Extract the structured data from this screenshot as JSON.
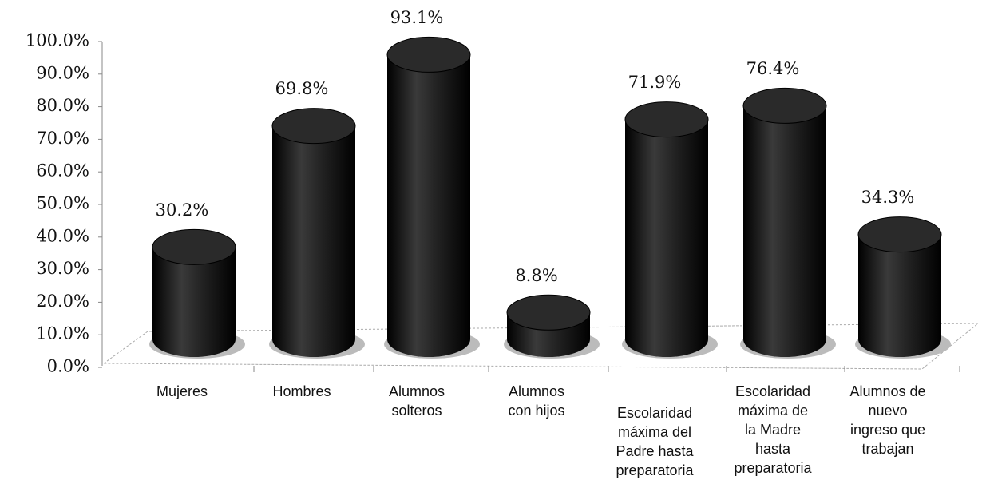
{
  "chart_data": {
    "type": "bar",
    "categories": [
      "Mujeres",
      "Hombres",
      "Alumnos\nsolteros",
      "Alumnos\ncon hijos",
      "Escolaridad\nmáxima del\nPadre hasta\npreparatoria",
      "Escolaridad\nmáxima de\nla Madre\nhasta\npreparatoria",
      "Alumnos de\nnuevo\ningreso que\ntrabajan"
    ],
    "values": [
      30.2,
      69.8,
      93.1,
      8.8,
      71.9,
      76.4,
      34.3
    ],
    "value_labels": [
      "30.2%",
      "69.8%",
      "93.1%",
      "8.8%",
      "71.9%",
      "76.4%",
      "34.3%"
    ],
    "color": "#161616",
    "ylim": [
      0,
      100
    ],
    "yticks": [
      {
        "value": 0,
        "label": "0.0%"
      },
      {
        "value": 10,
        "label": "10.0%"
      },
      {
        "value": 20,
        "label": "20.0%"
      },
      {
        "value": 30,
        "label": "30.0%"
      },
      {
        "value": 40,
        "label": "40.0%"
      },
      {
        "value": 50,
        "label": "50.0%"
      },
      {
        "value": 60,
        "label": "60.0%"
      },
      {
        "value": 70,
        "label": "70.0%"
      },
      {
        "value": 80,
        "label": "80.0%"
      },
      {
        "value": 90,
        "label": "90.0%"
      },
      {
        "value": 100,
        "label": "100.0%"
      }
    ]
  }
}
